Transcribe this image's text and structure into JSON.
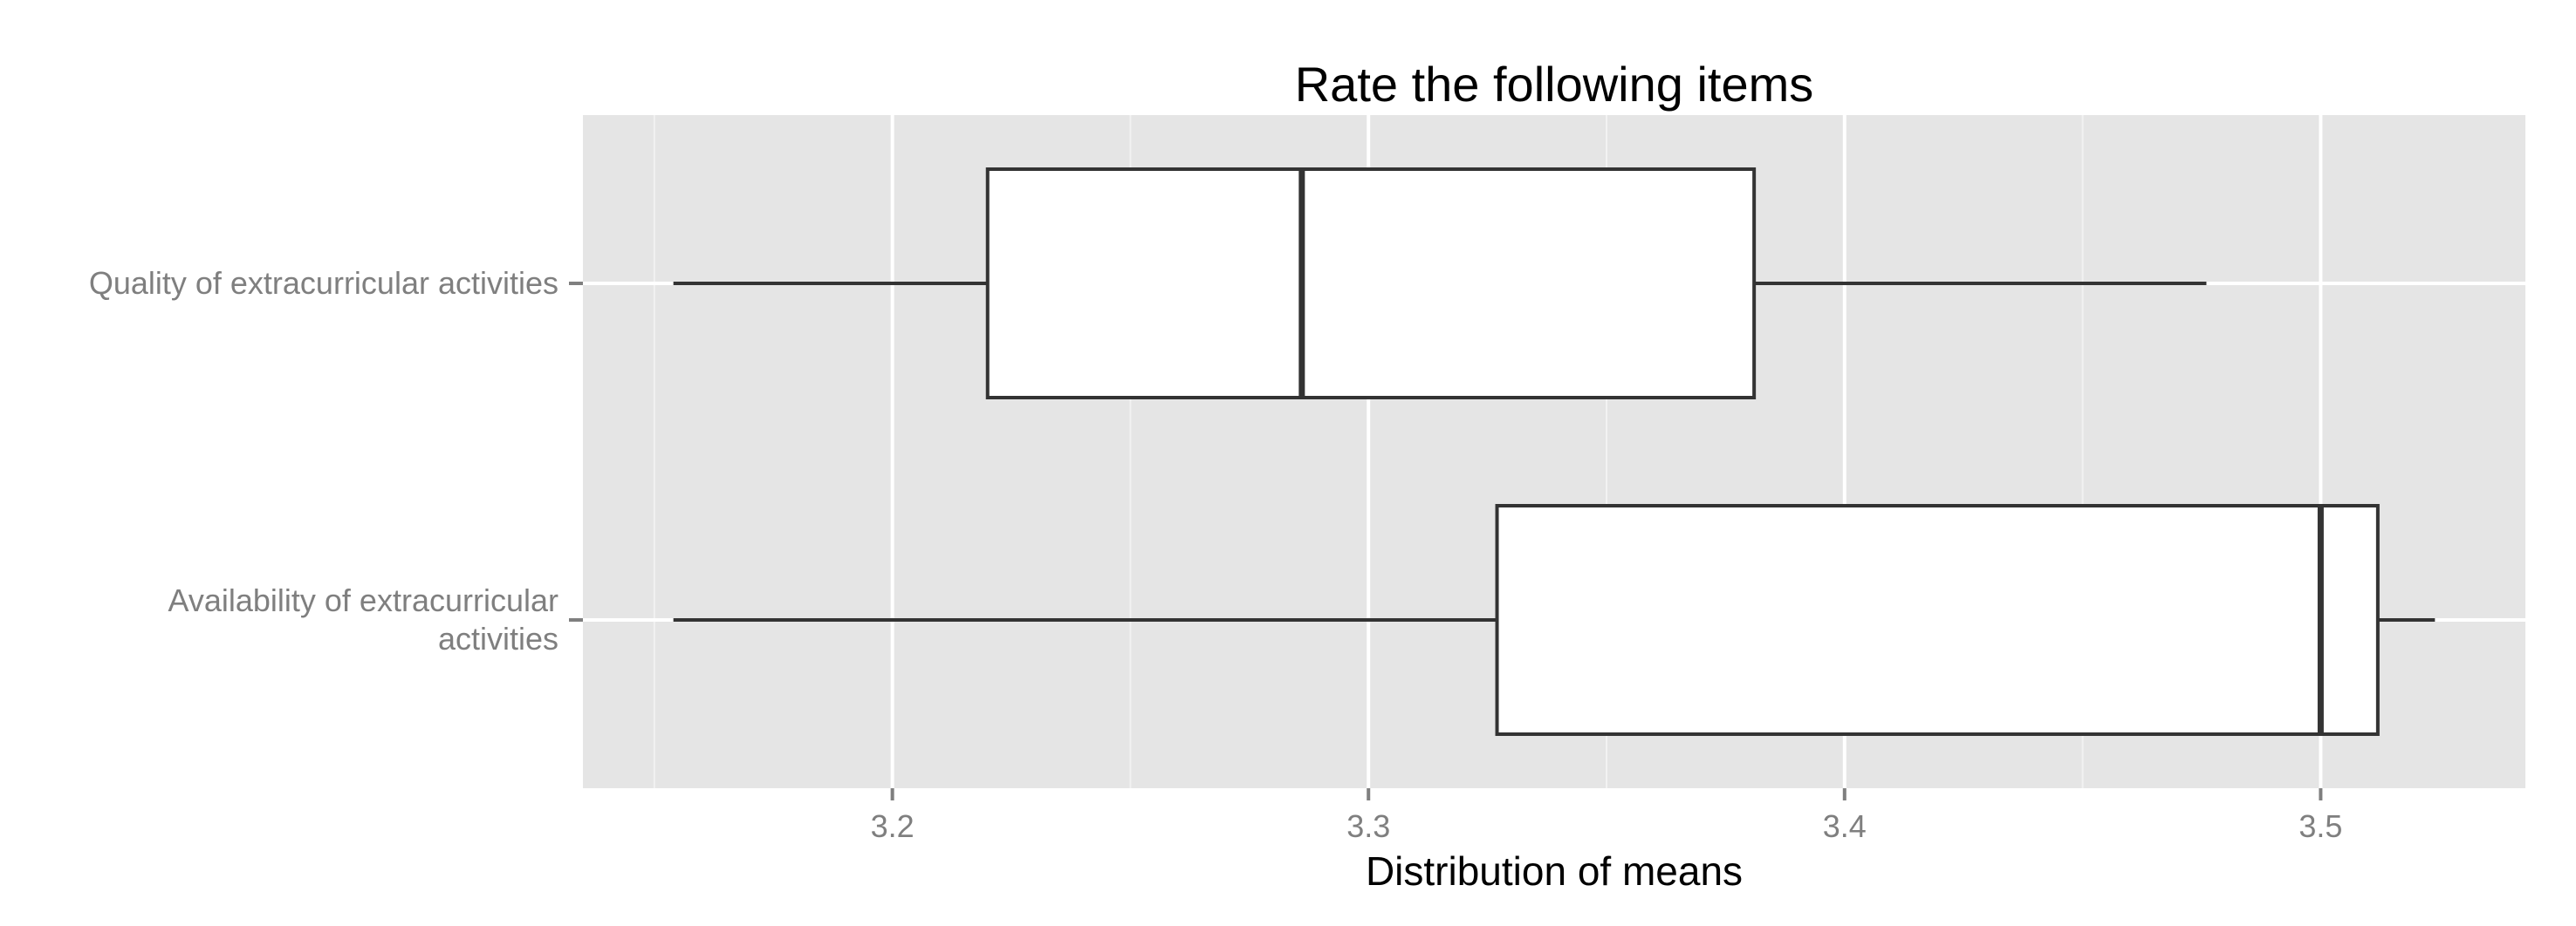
{
  "chart_data": {
    "type": "boxplot",
    "orientation": "horizontal",
    "title": "Rate the following items",
    "xlabel": "Distribution of means",
    "ylabel": "",
    "xlim": [
      3.135,
      3.543
    ],
    "xticks": [
      3.2,
      3.3,
      3.4,
      3.5
    ],
    "xtick_labels": [
      "3.2",
      "3.3",
      "3.4",
      "3.5"
    ],
    "grid": true,
    "background": "#e5e5e5",
    "box_fill": "#ffffff",
    "line_color": "#333333",
    "categories": [
      {
        "label_lines": [
          "Quality of extracurricular activities"
        ],
        "whisker_low": 3.154,
        "q1": 3.22,
        "median": 3.286,
        "q3": 3.381,
        "whisker_high": 3.476
      },
      {
        "label_lines": [
          "Availability of extracurricular",
          "activities"
        ],
        "whisker_low": 3.154,
        "q1": 3.327,
        "median": 3.5,
        "q3": 3.512,
        "whisker_high": 3.524
      }
    ]
  }
}
